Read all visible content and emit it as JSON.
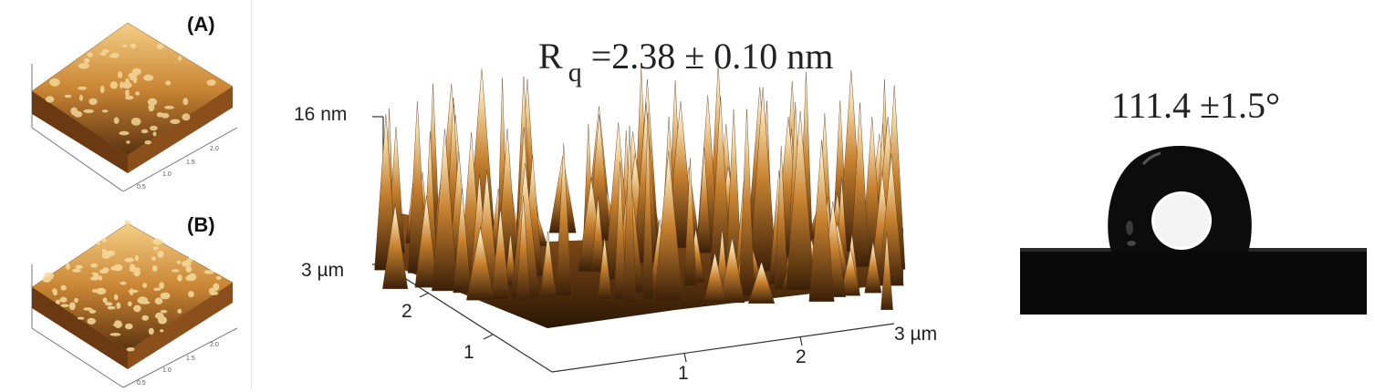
{
  "left": {
    "label_a": "(A)",
    "label_b": "(B)",
    "mini_ticks": [
      "0.5",
      "1.0",
      "1.5",
      "2.0"
    ]
  },
  "center": {
    "title_main": "R",
    "title_sub": "q",
    "title_value": "=2.38 ± 0.10 nm",
    "z_max": "16 nm",
    "y_max": "3 µm",
    "y_ticks": [
      "2",
      "1"
    ],
    "x_ticks": [
      "1",
      "2"
    ],
    "x_max": "3 µm"
  },
  "right": {
    "contact_angle": "111.4 ±1.5°"
  },
  "colors": {
    "afm_dark": "#3a1f08",
    "afm_mid": "#b06a22",
    "afm_light": "#f0c47a",
    "droplet": "#0c0c0c"
  }
}
